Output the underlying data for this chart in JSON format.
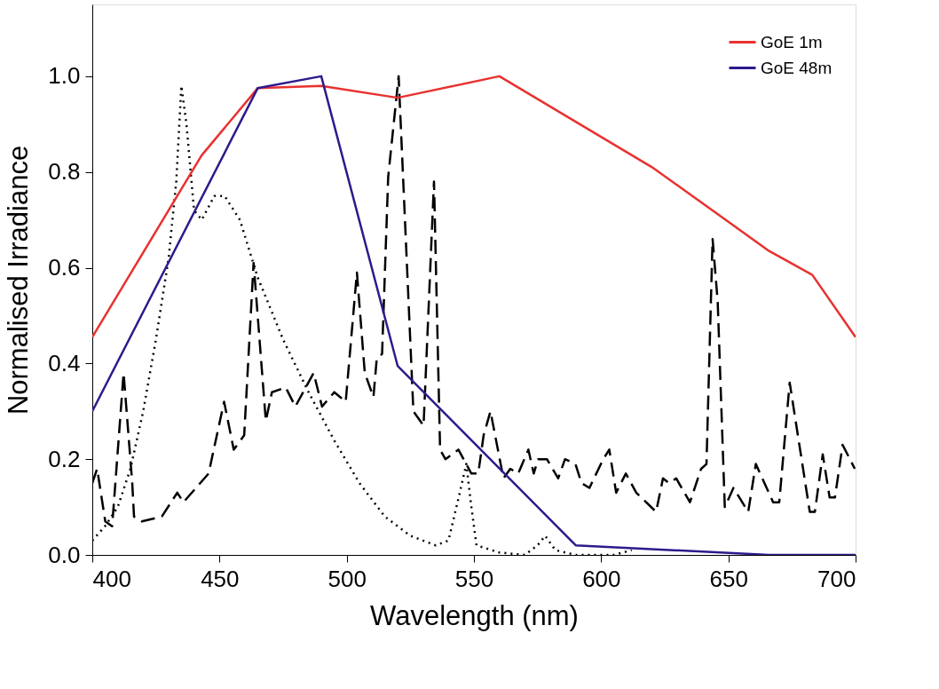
{
  "chart_data": {
    "type": "line",
    "xlabel": "Wavelength (nm)",
    "ylabel": "Normalised Irradiance",
    "xlim": [
      400,
      700
    ],
    "xticks": [
      400,
      450,
      500,
      550,
      600,
      650,
      700
    ],
    "ylim": [
      0,
      1.15
    ],
    "yticks": [
      {
        "value": 0,
        "label": "0.0"
      },
      0.2,
      0.4,
      0.6,
      0.8,
      {
        "value": 1,
        "label": "1.0"
      }
    ],
    "grid": false,
    "legend": "top right",
    "series": [
      {
        "color": "#000000",
        "line_style": "dashed",
        "x": [
          400,
          401.9,
          405.1,
          407.8,
          412.3,
          415.7,
          416.4,
          419.4,
          427.3,
          433.4,
          435.8,
          445.7,
          451.8,
          455.6,
          459.7,
          463.4,
          468.2,
          470.6,
          476,
          479.8,
          487,
          490.3,
          495.1,
          499.6,
          504,
          507.1,
          510.5,
          511.8,
          513.9,
          516.3,
          520.4,
          526.2,
          530.2,
          534.3,
          536.7,
          538.8,
          543.9,
          549,
          551.7,
          553.8,
          556.5,
          561.6,
          564.3,
          567.4,
          571.4,
          573.5,
          575.2,
          578.7,
          583.1,
          585.8,
          589.9,
          592.3,
          595.4,
          600.8,
          603.2,
          605.9,
          609.7,
          613.8,
          621.6,
          624.3,
          626.7,
          629.5,
          634.9,
          639.3,
          641.4,
          643.8,
          645.8,
          648.6,
          652,
          657.8,
          660.8,
          667.6,
          670,
          674.1,
          682,
          684,
          687.1,
          689.8,
          691.9,
          694.9,
          699.7
        ],
        "values": [
          0.15,
          0.18,
          0.07,
          0.06,
          0.38,
          0.15,
          0.08,
          0.07,
          0.08,
          0.13,
          0.11,
          0.17,
          0.32,
          0.22,
          0.25,
          0.61,
          0.28,
          0.34,
          0.35,
          0.31,
          0.38,
          0.31,
          0.34,
          0.32,
          0.59,
          0.38,
          0.33,
          0.41,
          0.42,
          0.79,
          1.0,
          0.3,
          0.27,
          0.78,
          0.22,
          0.2,
          0.22,
          0.17,
          0.17,
          0.25,
          0.3,
          0.16,
          0.18,
          0.17,
          0.22,
          0.17,
          0.2,
          0.2,
          0.16,
          0.2,
          0.19,
          0.15,
          0.14,
          0.2,
          0.22,
          0.13,
          0.17,
          0.13,
          0.09,
          0.16,
          0.15,
          0.16,
          0.11,
          0.18,
          0.19,
          0.66,
          0.53,
          0.1,
          0.14,
          0.09,
          0.19,
          0.11,
          0.11,
          0.36,
          0.09,
          0.09,
          0.21,
          0.12,
          0.12,
          0.23,
          0.18
        ]
      },
      {
        "color": "#000000",
        "line_style": "dotted",
        "x": [
          400,
          405,
          410,
          415,
          420,
          425,
          430,
          433,
          435,
          437,
          440,
          443,
          448,
          452,
          458,
          465,
          475,
          485,
          495,
          505,
          515,
          525,
          535,
          540,
          544,
          547,
          549,
          551,
          560,
          570,
          575,
          578,
          582,
          590,
          605,
          612
        ],
        "values": [
          0.03,
          0.06,
          0.1,
          0.18,
          0.3,
          0.45,
          0.62,
          0.78,
          0.98,
          0.9,
          0.72,
          0.7,
          0.75,
          0.75,
          0.7,
          0.58,
          0.45,
          0.34,
          0.24,
          0.15,
          0.08,
          0.04,
          0.02,
          0.03,
          0.12,
          0.19,
          0.1,
          0.02,
          0.005,
          0.0,
          0.02,
          0.04,
          0.01,
          0.0,
          0.0,
          0.01
        ]
      },
      {
        "name": "GoE 1m",
        "color": "#e8312f",
        "line_style": "solid",
        "x": [
          400,
          443,
          465,
          490,
          520,
          560,
          590,
          620,
          645,
          666,
          683,
          700
        ],
        "values": [
          0.455,
          0.835,
          0.975,
          0.98,
          0.955,
          1.0,
          0.905,
          0.81,
          0.715,
          0.635,
          0.585,
          0.455
        ]
      },
      {
        "name": "GoE 48m",
        "color": "#2e1a8c",
        "line_style": "solid",
        "x": [
          400,
          465,
          490,
          520,
          590,
          666,
          700
        ],
        "values": [
          0.3,
          0.975,
          1.0,
          0.395,
          0.02,
          0.0,
          0.0
        ]
      }
    ]
  }
}
